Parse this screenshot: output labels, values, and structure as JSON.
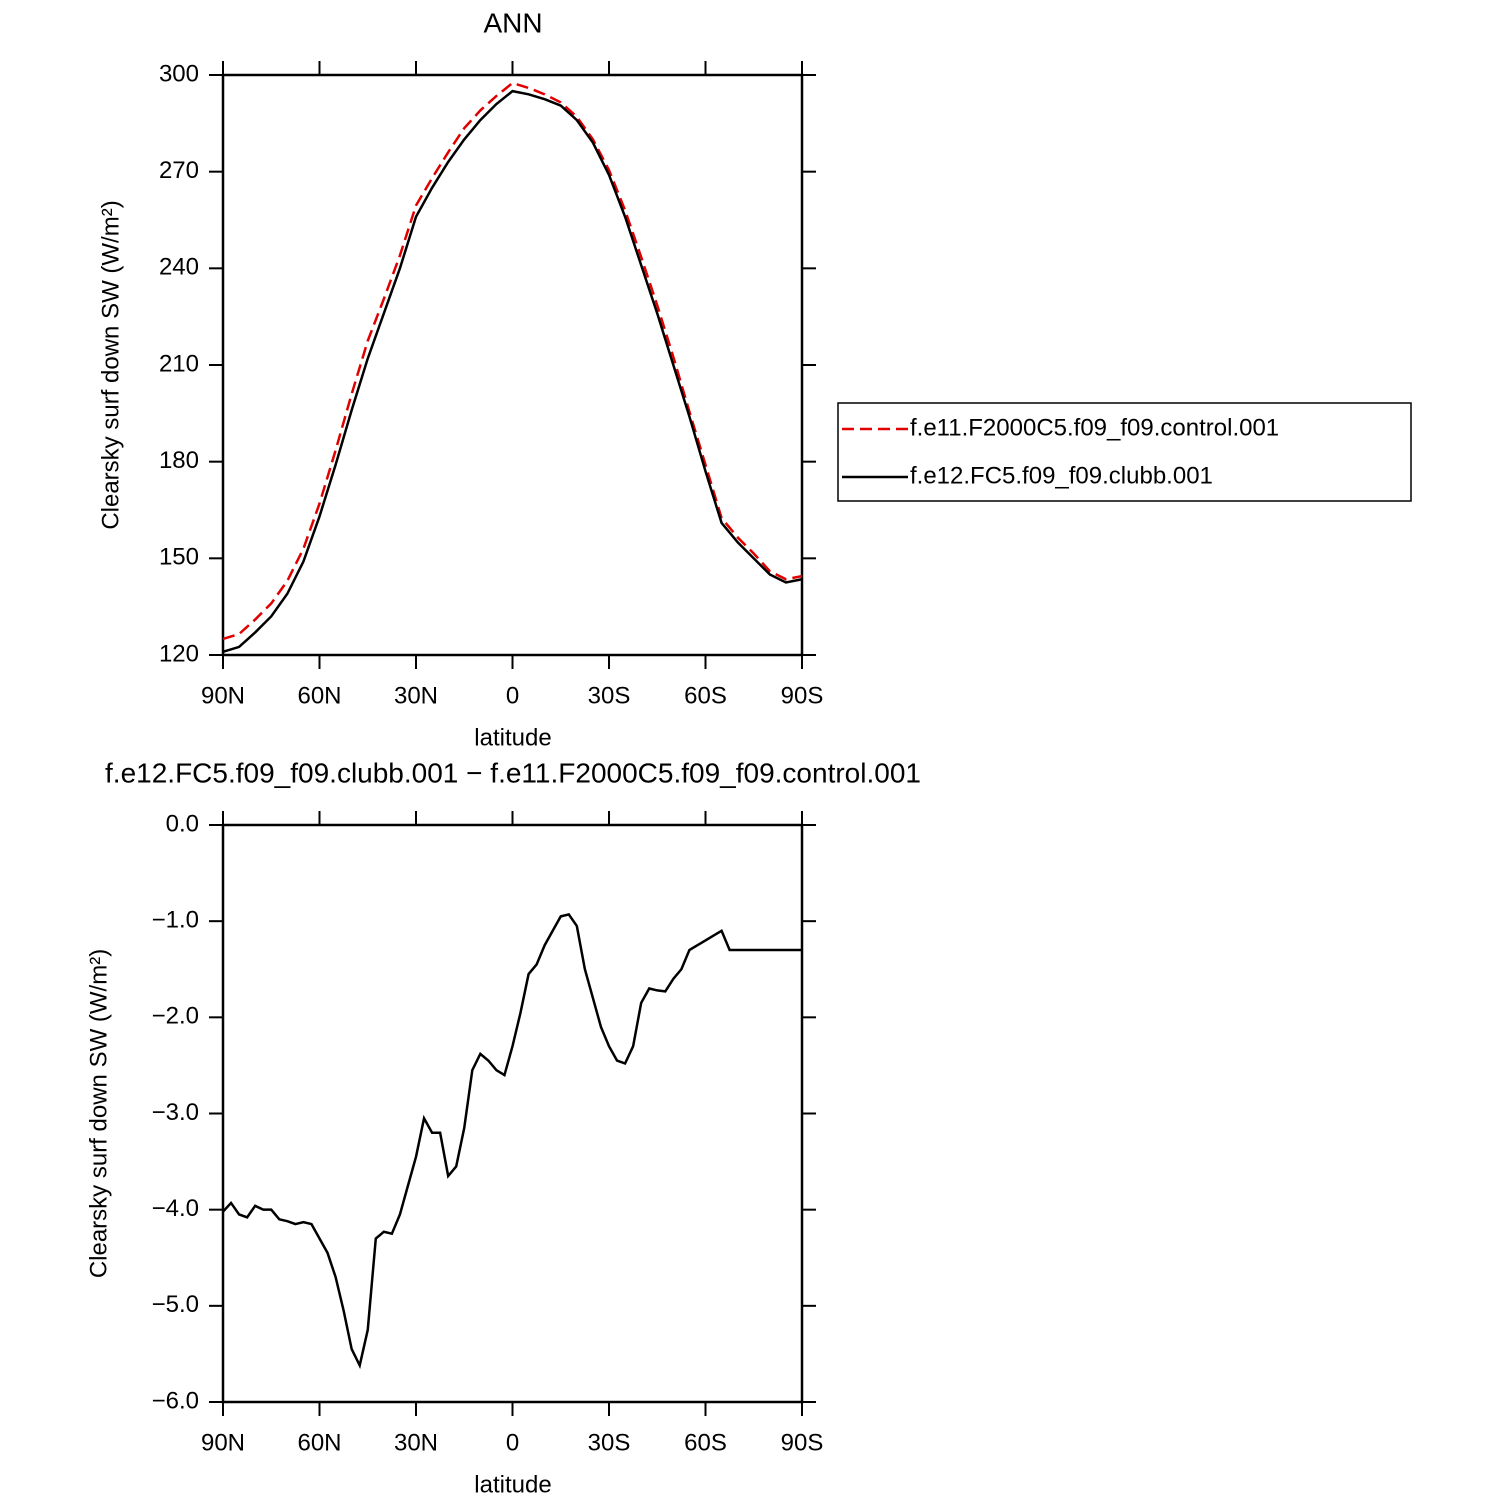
{
  "chart_data": [
    {
      "type": "line",
      "title": "ANN",
      "x_label": "latitude",
      "y_label": "Clearsky surf down SW (W/m²)",
      "x": [
        90,
        85,
        80,
        75,
        70,
        65,
        60,
        55,
        50,
        45,
        40,
        35,
        30,
        25,
        20,
        15,
        10,
        5,
        0,
        -5,
        -10,
        -15,
        -20,
        -25,
        -30,
        -35,
        -40,
        -45,
        -50,
        -55,
        -60,
        -65,
        -70,
        -75,
        -80,
        -85,
        -90
      ],
      "series": [
        {
          "name": "f.e11.F2000C5.f09_f09.control.001",
          "color": "#e00000",
          "line_style": "dashed",
          "values": [
            125,
            126.5,
            131,
            136,
            143,
            153,
            167,
            183.5,
            201,
            217.5,
            230.5,
            244,
            259.5,
            268,
            276,
            283.5,
            289,
            293.5,
            297.5,
            296,
            294,
            291.5,
            287,
            280,
            270.5,
            258,
            243.5,
            228.5,
            212.5,
            195.5,
            179,
            162.5,
            156.5,
            151.5,
            146,
            143.5,
            144.5
          ]
        },
        {
          "name": "f.e12.FC5.f09_f09.clubb.001",
          "color": "#000000",
          "line_style": "solid",
          "values": [
            121,
            122.5,
            127,
            132,
            139,
            149,
            163,
            179,
            196,
            212,
            226,
            240,
            256,
            265,
            273,
            280,
            286,
            291,
            295,
            294,
            292.5,
            290.5,
            286,
            279,
            269,
            256,
            241,
            226,
            210,
            194,
            177,
            161,
            155,
            150,
            145,
            142.5,
            143.5
          ]
        }
      ],
      "xlim": [
        90,
        -90
      ],
      "ylim": [
        120,
        300
      ],
      "xticks": [
        {
          "value": 90,
          "label": "90N"
        },
        {
          "value": 60,
          "label": "60N"
        },
        {
          "value": 30,
          "label": "30N"
        },
        0,
        {
          "value": -30,
          "label": "30S"
        },
        {
          "value": -60,
          "label": "60S"
        },
        {
          "value": -90,
          "label": "90S"
        }
      ],
      "yticks": [
        120,
        150,
        180,
        210,
        240,
        270,
        300
      ],
      "legend": "right"
    },
    {
      "type": "line",
      "title": "f.e12.FC5.f09_f09.clubb.001 − f.e11.F2000C5.f09_f09.control.001",
      "x_label": "latitude",
      "y_label": "Clearsky surf down SW (W/m²)",
      "x": [
        90,
        87.5,
        85,
        82.5,
        80,
        77.5,
        75,
        72.5,
        70,
        67.5,
        65,
        62.5,
        60,
        57.5,
        55,
        52.5,
        50,
        47.5,
        45,
        42.5,
        40,
        37.5,
        35,
        32.5,
        30,
        27.5,
        25,
        22.5,
        20,
        17.5,
        15,
        12.5,
        10,
        7.5,
        5,
        2.5,
        0,
        -2.5,
        -5,
        -7.5,
        -10,
        -12.5,
        -15,
        -17.5,
        -20,
        -22.5,
        -25,
        -27.5,
        -30,
        -32.5,
        -35,
        -37.5,
        -40,
        -42.5,
        -45,
        -47.5,
        -50,
        -52.5,
        -55,
        -57.5,
        -60,
        -62.5,
        -65,
        -67.5,
        -70,
        -72.5,
        -75,
        -77.5,
        -80,
        -82.5,
        -85,
        -87.5,
        -90
      ],
      "series": [
        {
          "color": "#000000",
          "line_style": "solid",
          "values": [
            -4.02,
            -3.93,
            -4.05,
            -4.08,
            -3.96,
            -4.0,
            -4.0,
            -4.1,
            -4.12,
            -4.15,
            -4.13,
            -4.15,
            -4.3,
            -4.45,
            -4.7,
            -5.05,
            -5.45,
            -5.62,
            -5.25,
            -4.3,
            -4.23,
            -4.25,
            -4.05,
            -3.75,
            -3.45,
            -3.05,
            -3.2,
            -3.2,
            -3.65,
            -3.55,
            -3.15,
            -2.55,
            -2.38,
            -2.45,
            -2.55,
            -2.6,
            -2.3,
            -1.95,
            -1.55,
            -1.45,
            -1.25,
            -1.1,
            -0.95,
            -0.93,
            -1.05,
            -1.5,
            -1.8,
            -2.1,
            -2.3,
            -2.45,
            -2.48,
            -2.3,
            -1.85,
            -1.7,
            -1.72,
            -1.73,
            -1.6,
            -1.5,
            -1.3,
            -1.25,
            -1.2,
            -1.15,
            -1.1,
            -1.3,
            -1.3,
            -1.3,
            -1.3,
            -1.3,
            -1.3,
            -1.3,
            -1.3,
            -1.3,
            -1.3
          ]
        }
      ],
      "xlim": [
        90,
        -90
      ],
      "ylim": [
        -6,
        0
      ],
      "xticks": [
        {
          "value": 90,
          "label": "90N"
        },
        {
          "value": 60,
          "label": "60N"
        },
        {
          "value": 30,
          "label": "30N"
        },
        0,
        {
          "value": -30,
          "label": "30S"
        },
        {
          "value": -60,
          "label": "60S"
        },
        {
          "value": -90,
          "label": "90S"
        }
      ],
      "yticks": [
        {
          "value": -6,
          "label": "−6.0"
        },
        {
          "value": -5,
          "label": "−5.0"
        },
        {
          "value": -4,
          "label": "−4.0"
        },
        {
          "value": -3,
          "label": "−3.0"
        },
        {
          "value": -2,
          "label": "−2.0"
        },
        {
          "value": -1,
          "label": "−1.0"
        },
        {
          "value": 0,
          "label": "0.0"
        }
      ]
    }
  ]
}
